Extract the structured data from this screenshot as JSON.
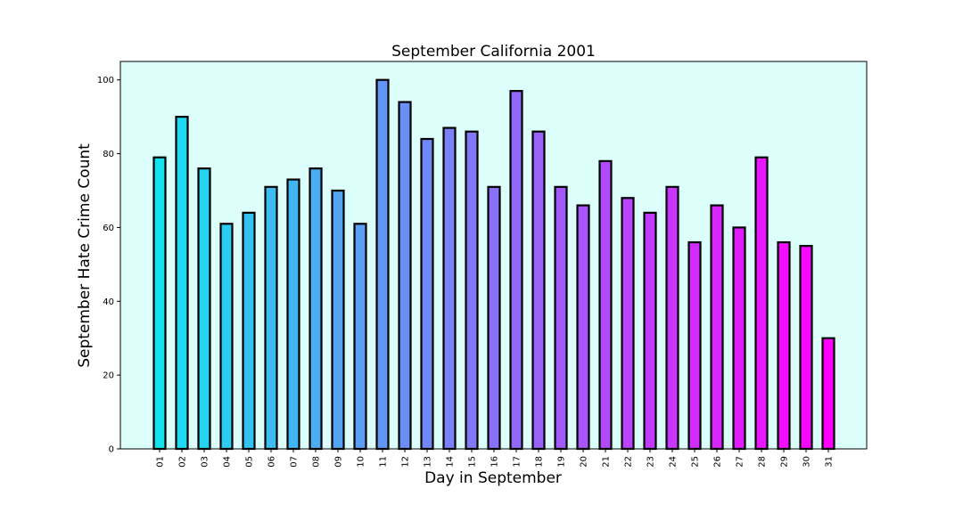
{
  "chart_data": {
    "type": "bar",
    "title": "September California 2001",
    "xlabel": "Day in September",
    "ylabel": "September Hate Crime Count",
    "categories": [
      "01",
      "02",
      "03",
      "04",
      "05",
      "06",
      "07",
      "08",
      "09",
      "10",
      "11",
      "12",
      "13",
      "14",
      "15",
      "16",
      "17",
      "18",
      "19",
      "20",
      "21",
      "22",
      "23",
      "24",
      "25",
      "26",
      "27",
      "28",
      "29",
      "30",
      "31"
    ],
    "values": [
      79,
      90,
      76,
      61,
      64,
      71,
      73,
      76,
      70,
      61,
      100,
      94,
      84,
      87,
      86,
      71,
      97,
      86,
      71,
      66,
      78,
      68,
      64,
      71,
      56,
      66,
      60,
      79,
      56,
      55,
      30
    ],
    "ylim": [
      0,
      105
    ],
    "yticks": [
      0,
      20,
      40,
      60,
      80,
      100
    ],
    "grid": false,
    "legend": "none",
    "colors": {
      "plot_background": "#dcfffc",
      "bar_edge": "#000000",
      "bar_gradient_start": "#14e1f0",
      "bar_gradient_end": "#ff00ff"
    }
  }
}
